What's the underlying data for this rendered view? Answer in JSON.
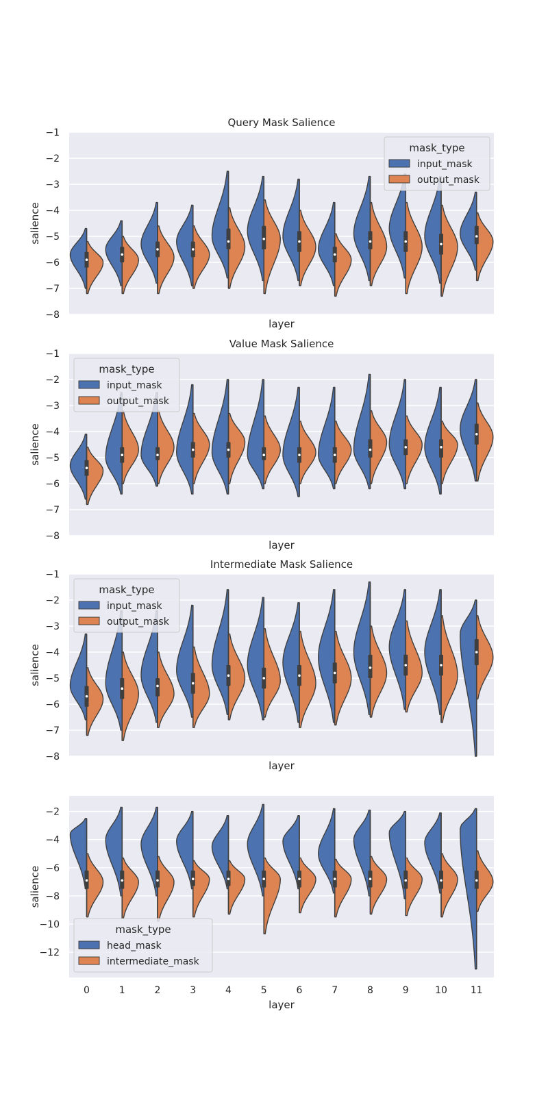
{
  "chart_data": [
    {
      "type": "violin",
      "title": "Query Mask Salience",
      "xlabel": "layer",
      "ylabel": "salience",
      "ylim": [
        -8,
        -1
      ],
      "yticks": [
        "-1",
        "-2",
        "-3",
        "-4",
        "-5",
        "-6",
        "-7",
        "-8"
      ],
      "show_xticks": false,
      "legend": {
        "title": "mask_type",
        "placement": "top-right",
        "labels": [
          "input_mask",
          "output_mask"
        ]
      },
      "categories": [
        "0",
        "1",
        "2",
        "3",
        "4",
        "5",
        "6",
        "7",
        "8",
        "9",
        "10",
        "11"
      ],
      "series": [
        {
          "name": "input_mask",
          "color": "#4c72b0",
          "min": [
            -7.0,
            -6.9,
            -6.8,
            -6.9,
            -6.6,
            -6.7,
            -6.7,
            -6.9,
            -6.7,
            -6.6,
            -6.8,
            -6.3
          ],
          "mode": [
            -5.7,
            -5.5,
            -5.3,
            -5.2,
            -5.0,
            -4.8,
            -5.0,
            -5.5,
            -4.9,
            -4.7,
            -5.0,
            -4.9
          ],
          "max": [
            -4.7,
            -4.4,
            -3.7,
            -3.8,
            -2.5,
            -2.7,
            -2.8,
            -3.7,
            -2.7,
            -2.6,
            -2.7,
            -3.3
          ]
        },
        {
          "name": "output_mask",
          "color": "#dd8452",
          "min": [
            -7.2,
            -7.2,
            -7.2,
            -7.0,
            -7.0,
            -7.2,
            -6.9,
            -7.3,
            -6.9,
            -7.2,
            -7.3,
            -6.7
          ],
          "mode": [
            -6.0,
            -5.9,
            -5.8,
            -5.7,
            -5.4,
            -5.1,
            -5.4,
            -5.9,
            -5.4,
            -5.4,
            -5.4,
            -5.2
          ],
          "max": [
            -5.2,
            -5.0,
            -4.6,
            -4.6,
            -3.9,
            -3.6,
            -4.0,
            -4.9,
            -3.7,
            -3.7,
            -3.8,
            -4.1
          ]
        }
      ],
      "median": [
        -5.9,
        -5.7,
        -5.5,
        -5.5,
        -5.2,
        -5.1,
        -5.2,
        -5.7,
        -5.2,
        -5.2,
        -5.3,
        -5.0
      ],
      "q1": [
        -6.2,
        -6.0,
        -5.8,
        -5.8,
        -5.5,
        -5.5,
        -5.6,
        -6.0,
        -5.5,
        -5.6,
        -5.7,
        -5.3
      ],
      "q3": [
        -5.6,
        -5.4,
        -5.2,
        -5.2,
        -4.7,
        -4.6,
        -4.8,
        -5.4,
        -4.8,
        -4.8,
        -4.9,
        -4.6
      ]
    },
    {
      "type": "violin",
      "title": "Value Mask Salience",
      "xlabel": "layer",
      "ylabel": "salience",
      "ylim": [
        -8,
        -1
      ],
      "yticks": [
        "-1",
        "-2",
        "-3",
        "-4",
        "-5",
        "-6",
        "-7",
        "-8"
      ],
      "show_xticks": false,
      "legend": {
        "title": "mask_type",
        "placement": "top-left",
        "labels": [
          "input_mask",
          "output_mask"
        ]
      },
      "categories": [
        "0",
        "1",
        "2",
        "3",
        "4",
        "5",
        "6",
        "7",
        "8",
        "9",
        "10",
        "11"
      ],
      "series": [
        {
          "name": "input_mask",
          "color": "#4c72b0",
          "min": [
            -6.6,
            -6.4,
            -6.1,
            -6.4,
            -6.4,
            -6.2,
            -6.5,
            -6.2,
            -6.2,
            -6.2,
            -6.4,
            -5.9
          ],
          "mode": [
            -5.3,
            -5.0,
            -4.9,
            -4.8,
            -4.8,
            -4.9,
            -4.9,
            -4.9,
            -4.7,
            -4.5,
            -4.6,
            -3.9
          ],
          "max": [
            -4.1,
            -2.5,
            -2.5,
            -2.2,
            -2.0,
            -2.0,
            -2.3,
            -2.3,
            -1.8,
            -2.0,
            -2.3,
            -2.0
          ]
        },
        {
          "name": "output_mask",
          "color": "#dd8452",
          "min": [
            -6.8,
            -6.0,
            -6.0,
            -6.0,
            -6.0,
            -6.0,
            -6.0,
            -6.0,
            -6.0,
            -6.0,
            -6.0,
            -5.9
          ],
          "mode": [
            -5.5,
            -4.7,
            -4.6,
            -4.5,
            -4.4,
            -4.7,
            -4.8,
            -4.7,
            -4.4,
            -4.5,
            -4.5,
            -4.2
          ],
          "max": [
            -4.6,
            -3.2,
            -3.2,
            -3.3,
            -3.3,
            -3.4,
            -3.6,
            -3.6,
            -3.2,
            -3.4,
            -3.6,
            -2.9
          ]
        }
      ],
      "median": [
        -5.4,
        -4.9,
        -4.9,
        -4.7,
        -4.7,
        -4.9,
        -4.9,
        -4.9,
        -4.7,
        -4.6,
        -4.6,
        -4.1
      ],
      "q1": [
        -5.7,
        -5.2,
        -5.1,
        -5.0,
        -5.0,
        -5.1,
        -5.2,
        -5.2,
        -5.0,
        -4.9,
        -5.0,
        -4.5
      ],
      "q3": [
        -5.1,
        -4.6,
        -4.6,
        -4.4,
        -4.4,
        -4.6,
        -4.6,
        -4.6,
        -4.3,
        -4.3,
        -4.3,
        -3.7
      ]
    },
    {
      "type": "violin",
      "title": "Intermediate Mask Salience",
      "xlabel": "layer",
      "ylabel": "salience",
      "ylim": [
        -8,
        -1
      ],
      "yticks": [
        "-1",
        "-2",
        "-3",
        "-4",
        "-5",
        "-6",
        "-7",
        "-8"
      ],
      "show_xticks": false,
      "legend": {
        "title": "mask_type",
        "placement": "top-left",
        "labels": [
          "input_mask",
          "output_mask"
        ]
      },
      "categories": [
        "0",
        "1",
        "2",
        "3",
        "4",
        "5",
        "6",
        "7",
        "8",
        "9",
        "10",
        "11"
      ],
      "series": [
        {
          "name": "input_mask",
          "color": "#4c72b0",
          "min": [
            -6.6,
            -7.0,
            -6.7,
            -6.5,
            -6.4,
            -6.6,
            -6.7,
            -6.7,
            -6.4,
            -6.2,
            -6.4,
            -8.0
          ],
          "mode": [
            -5.3,
            -5.2,
            -4.9,
            -4.7,
            -4.5,
            -4.5,
            -4.4,
            -4.2,
            -4.0,
            -3.8,
            -4.0,
            -3.3
          ],
          "max": [
            -3.3,
            -2.4,
            -2.4,
            -2.2,
            -1.6,
            -1.9,
            -2.1,
            -1.6,
            -1.3,
            -1.6,
            -1.6,
            -2.0
          ]
        },
        {
          "name": "output_mask",
          "color": "#dd8452",
          "min": [
            -7.2,
            -7.4,
            -6.9,
            -6.9,
            -6.6,
            -6.5,
            -6.9,
            -6.8,
            -6.5,
            -6.3,
            -6.7,
            -5.8
          ],
          "mode": [
            -5.8,
            -5.6,
            -5.6,
            -5.6,
            -5.0,
            -5.1,
            -5.2,
            -5.0,
            -4.8,
            -4.8,
            -4.9,
            -4.2
          ],
          "max": [
            -4.6,
            -4.0,
            -4.0,
            -3.8,
            -3.3,
            -3.1,
            -3.2,
            -3.2,
            -3.0,
            -2.8,
            -2.6,
            -2.6
          ]
        }
      ],
      "median": [
        -5.7,
        -5.4,
        -5.3,
        -5.2,
        -4.9,
        -5.0,
        -4.9,
        -4.8,
        -4.6,
        -4.5,
        -4.5,
        -4.0
      ],
      "q1": [
        -6.1,
        -5.8,
        -5.7,
        -5.6,
        -5.3,
        -5.4,
        -5.3,
        -5.2,
        -5.0,
        -4.9,
        -4.9,
        -4.5
      ],
      "q3": [
        -5.3,
        -5.0,
        -5.0,
        -4.8,
        -4.5,
        -4.6,
        -4.5,
        -4.4,
        -4.1,
        -4.1,
        -4.1,
        -3.5
      ]
    },
    {
      "type": "violin",
      "title": "",
      "xlabel": "layer",
      "ylabel": "salience",
      "ylim": [
        -13.8,
        -0.9
      ],
      "yticks": [
        "-2",
        "-4",
        "-6",
        "-8",
        "-10",
        "-12"
      ],
      "show_xticks": true,
      "legend": {
        "title": "mask_type",
        "placement": "bottom-left",
        "labels": [
          "head_mask",
          "intermediate_mask"
        ]
      },
      "categories": [
        "0",
        "1",
        "2",
        "3",
        "4",
        "5",
        "6",
        "7",
        "8",
        "9",
        "10",
        "11"
      ],
      "series": [
        {
          "name": "head_mask",
          "color": "#4c72b0",
          "min": [
            -7.5,
            -8.0,
            -8.0,
            -7.5,
            -7.5,
            -8.0,
            -7.5,
            -7.8,
            -8.0,
            -8.2,
            -7.8,
            -13.2
          ],
          "mode": [
            -3.6,
            -4.0,
            -4.3,
            -4.1,
            -4.5,
            -4.3,
            -4.1,
            -5.0,
            -4.0,
            -3.5,
            -4.2,
            -3.2
          ],
          "max": [
            -2.5,
            -1.7,
            -1.7,
            -2.0,
            -2.3,
            -1.5,
            -2.3,
            -1.8,
            -1.9,
            -2.0,
            -2.1,
            -1.8
          ]
        },
        {
          "name": "intermediate_mask",
          "color": "#dd8452",
          "min": [
            -9.5,
            -9.6,
            -9.8,
            -9.5,
            -9.3,
            -10.7,
            -9.2,
            -9.5,
            -9.3,
            -9.4,
            -9.5,
            -9.1
          ],
          "mode": [
            -7.0,
            -7.0,
            -7.0,
            -6.8,
            -6.8,
            -6.8,
            -6.8,
            -6.8,
            -6.8,
            -6.8,
            -6.8,
            -7.0
          ],
          "max": [
            -5.0,
            -5.3,
            -5.2,
            -5.5,
            -5.5,
            -5.3,
            -5.3,
            -5.4,
            -5.2,
            -5.3,
            -5.0,
            -4.8
          ]
        }
      ],
      "median": [
        -6.9,
        -6.9,
        -6.9,
        -6.8,
        -6.8,
        -6.8,
        -6.8,
        -6.8,
        -6.8,
        -6.9,
        -6.9,
        -6.9
      ],
      "q1": [
        -7.5,
        -7.5,
        -7.4,
        -7.3,
        -7.3,
        -7.4,
        -7.4,
        -7.4,
        -7.4,
        -7.5,
        -7.5,
        -7.5
      ],
      "q3": [
        -6.2,
        -6.2,
        -6.2,
        -6.2,
        -6.2,
        -6.2,
        -6.2,
        -6.2,
        -6.2,
        -6.2,
        -6.2,
        -6.2
      ]
    }
  ]
}
